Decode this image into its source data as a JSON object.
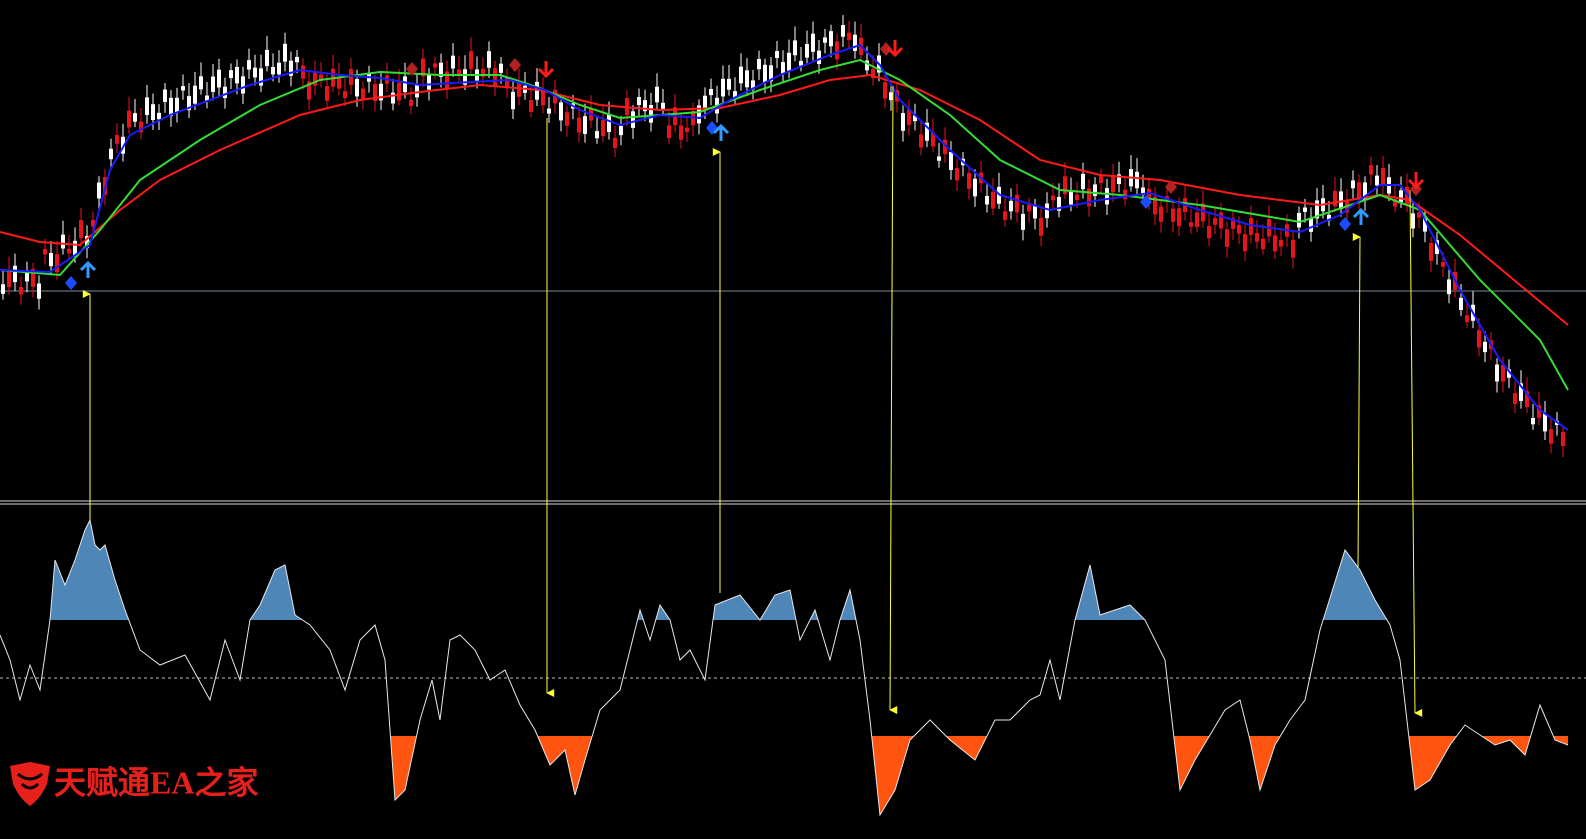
{
  "watermark": {
    "text": "天赋通EA之家"
  }
}
